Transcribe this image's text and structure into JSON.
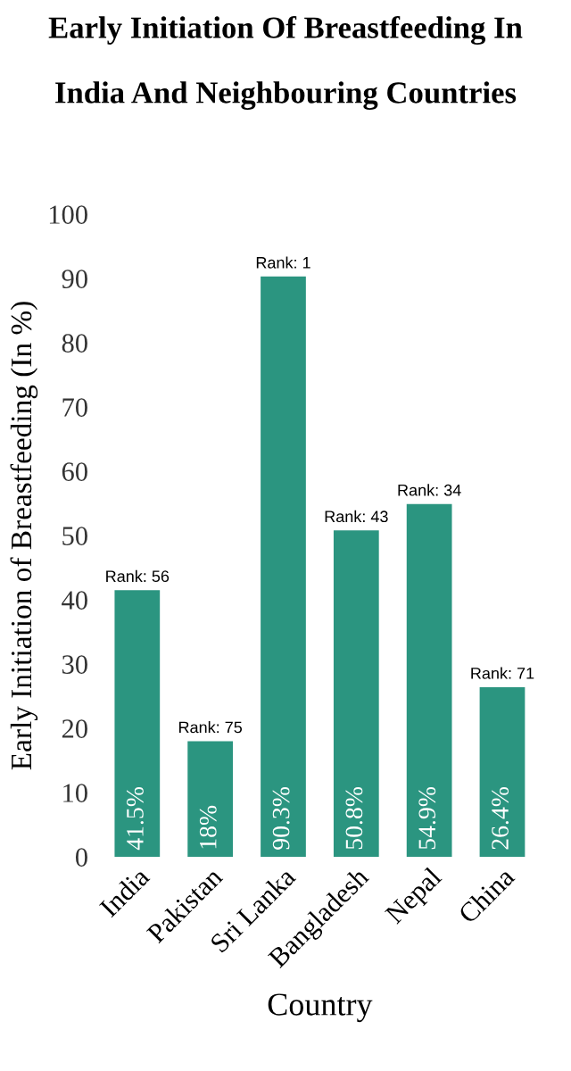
{
  "chart_data": {
    "type": "bar",
    "title": "Early Initiation Of Breastfeeding In\n\nIndia And Neighbouring Countries",
    "xlabel": "Country",
    "ylabel": "Early Initiation of Breastfeeding (In %)",
    "categories": [
      "India",
      "Pakistan",
      "Sri Lanka",
      "Bangladesh",
      "Nepal",
      "China"
    ],
    "values": [
      41.5,
      18,
      90.3,
      50.8,
      54.9,
      26.4
    ],
    "value_labels": [
      "41.5%",
      "18%",
      "90.3%",
      "50.8%",
      "54.9%",
      "26.4%"
    ],
    "color": "#2b9580",
    "ylim": [
      0,
      100
    ],
    "yticks": [
      0,
      10,
      20,
      30,
      40,
      50,
      60,
      70,
      80,
      90,
      100
    ],
    "grid": false,
    "annotations": [
      {
        "text": "Rank: 56",
        "x": "India",
        "y": 41.5
      },
      {
        "text": "Rank: 75",
        "x": "Pakistan",
        "y": 18
      },
      {
        "text": "Rank: 1",
        "x": "Sri Lanka",
        "y": 90.3
      },
      {
        "text": "Rank: 43",
        "x": "Bangladesh",
        "y": 50.8
      },
      {
        "text": "Rank: 34",
        "x": "Nepal",
        "y": 54.9
      },
      {
        "text": "Rank: 71",
        "x": "China",
        "y": 26.4
      }
    ]
  }
}
